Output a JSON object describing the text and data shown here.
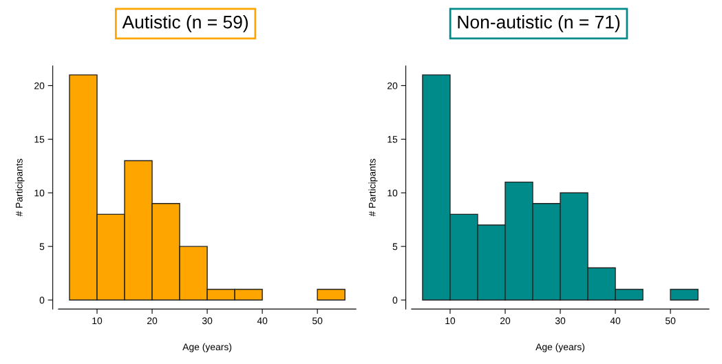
{
  "chart_data": [
    {
      "type": "histogram",
      "title": "Autistic (n = 59)",
      "xlabel": "Age (years)",
      "ylabel": "# Participants",
      "color": "#ffa500",
      "bins": [
        5,
        10,
        15,
        20,
        25,
        30,
        35,
        40,
        45,
        50,
        55
      ],
      "values": [
        21,
        8,
        13,
        9,
        5,
        1,
        1,
        0,
        0,
        1
      ],
      "xlim": [
        3,
        57
      ],
      "xticks": [
        10,
        20,
        30,
        40,
        50
      ],
      "ylim": [
        -0.84,
        21.84
      ],
      "yticks": [
        0,
        5,
        10,
        15,
        20
      ],
      "grid": false
    },
    {
      "type": "histogram",
      "title": "Non-autistic (n = 71)",
      "xlabel": "Age (years)",
      "ylabel": "# Participants",
      "color": "#008b8b",
      "bins": [
        5,
        10,
        15,
        20,
        25,
        30,
        35,
        40,
        45,
        50,
        55
      ],
      "values": [
        21,
        8,
        7,
        11,
        9,
        10,
        3,
        1,
        0,
        1
      ],
      "xlim": [
        3,
        57
      ],
      "xticks": [
        10,
        20,
        30,
        40,
        50
      ],
      "ylim": [
        -0.84,
        21.84
      ],
      "yticks": [
        0,
        5,
        10,
        15,
        20
      ],
      "grid": false
    }
  ]
}
